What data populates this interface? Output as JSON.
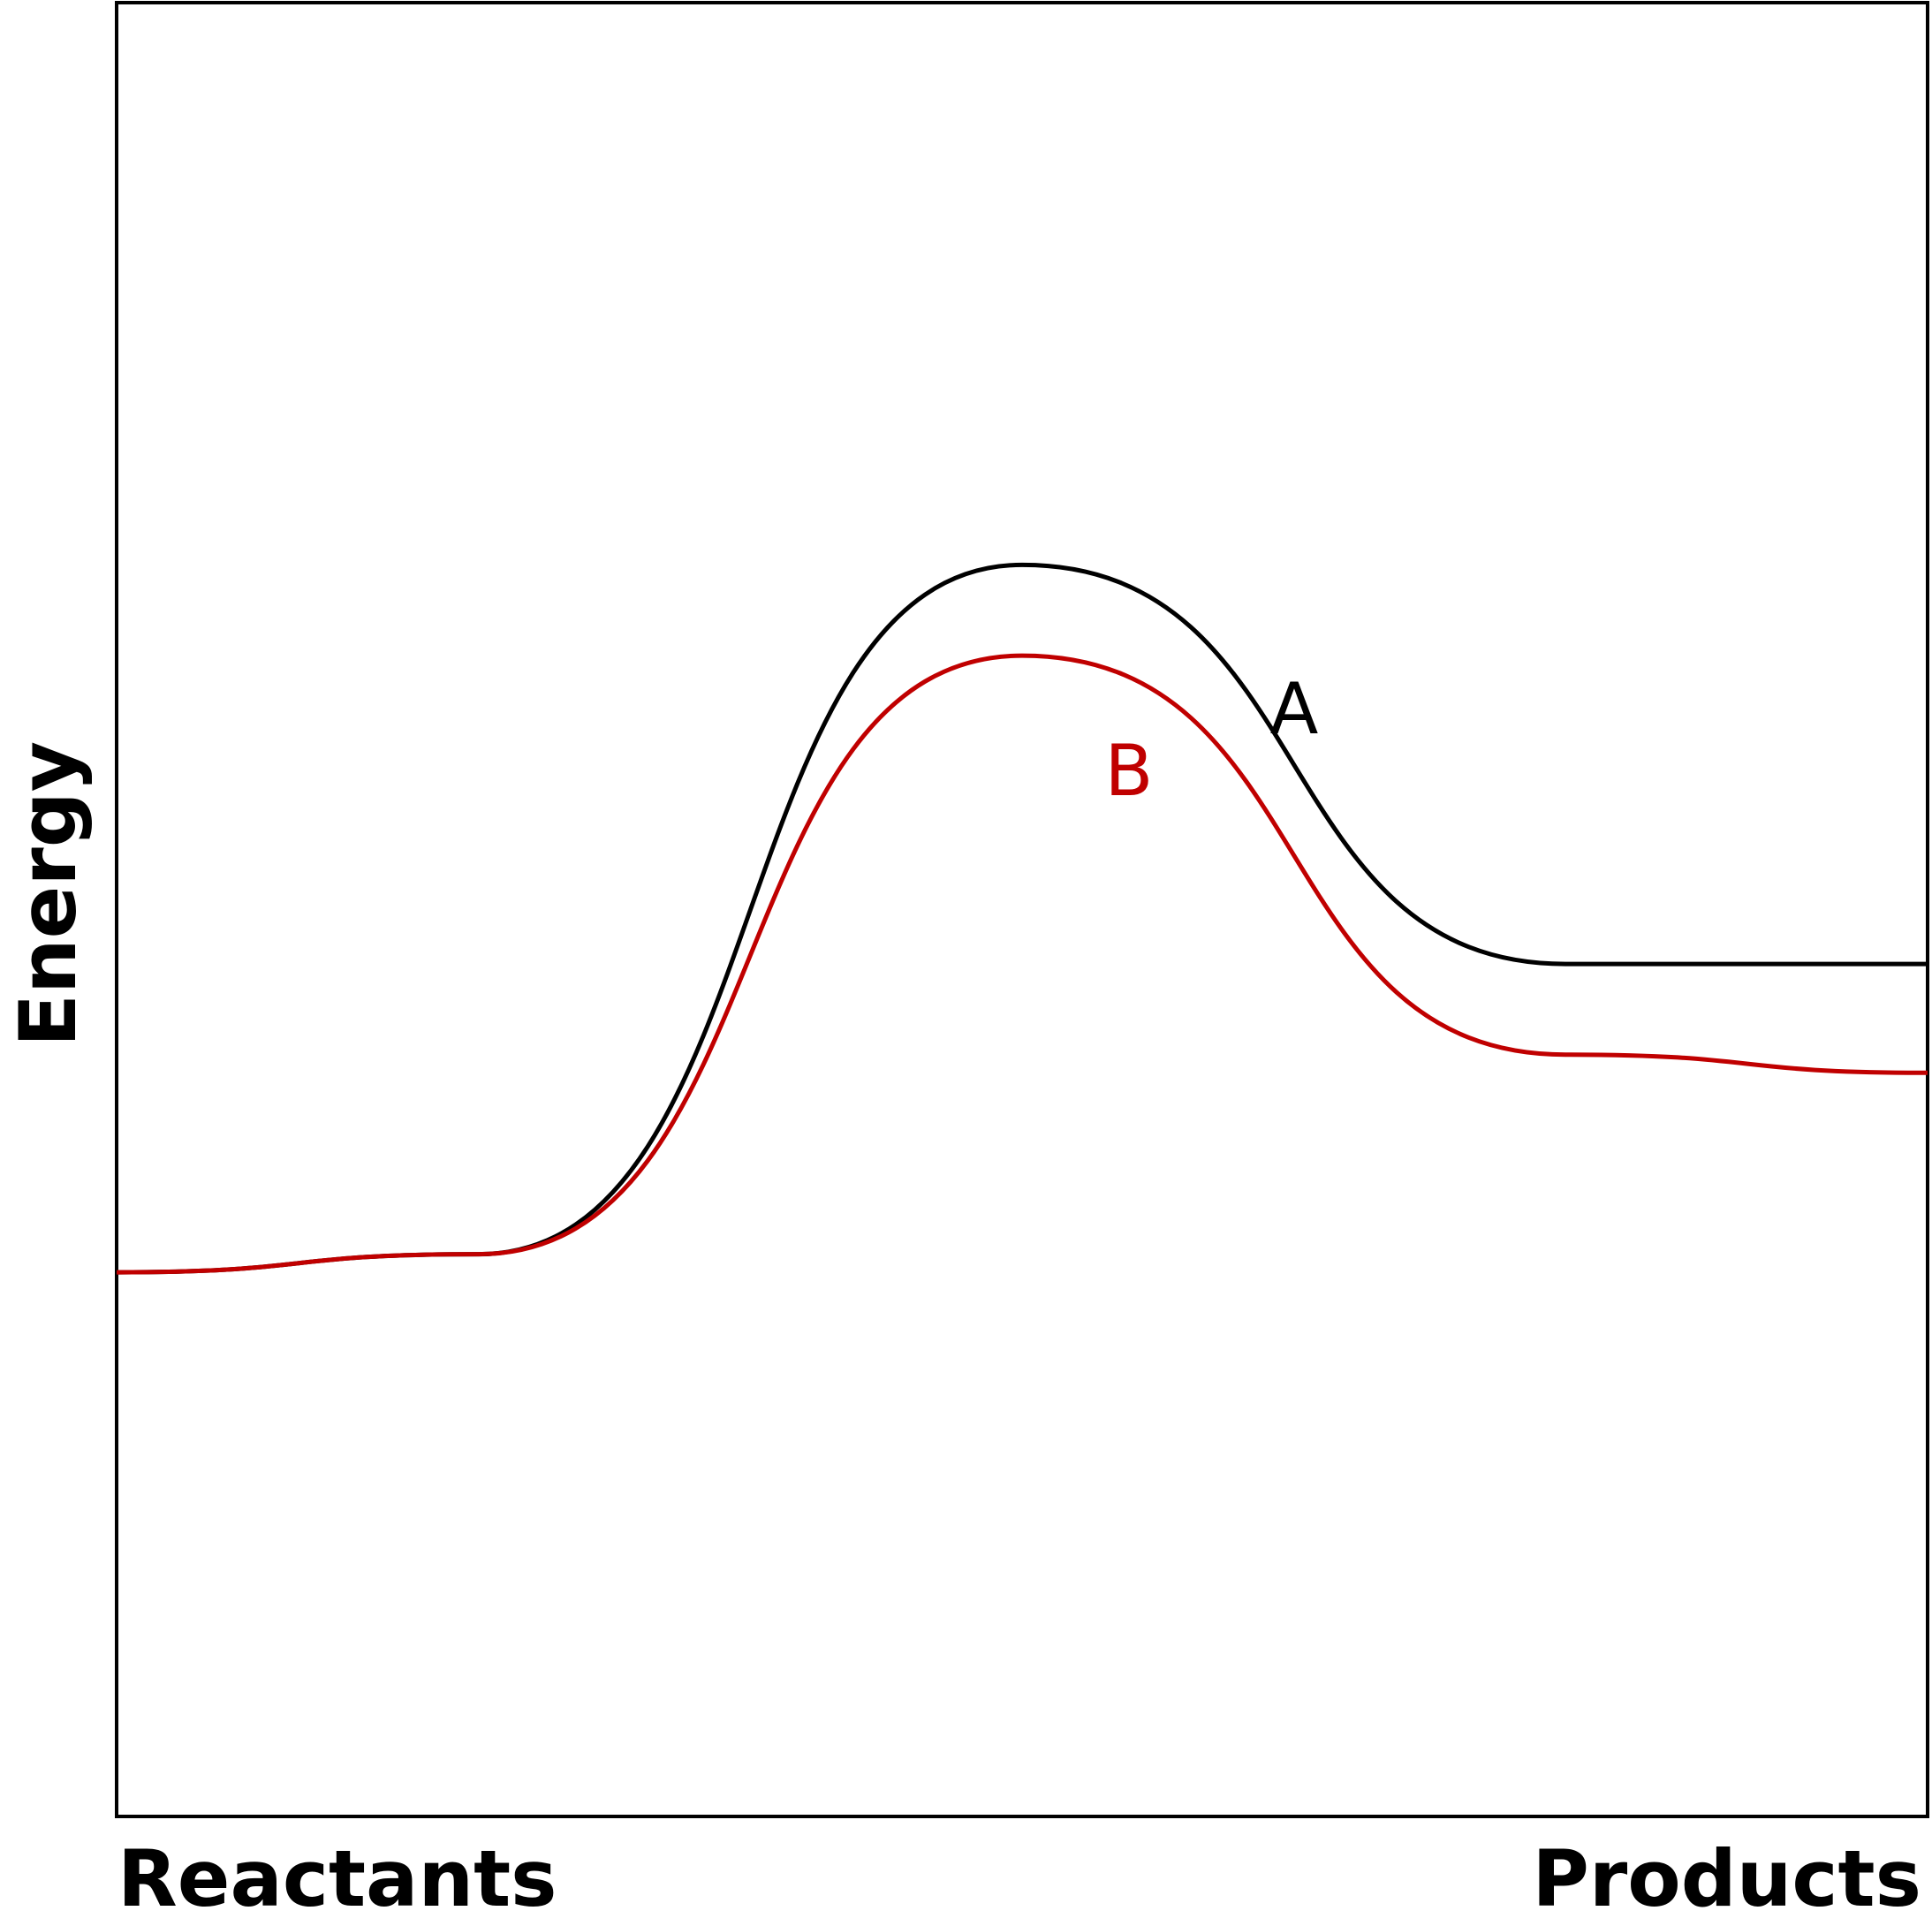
{
  "chart_data": {
    "type": "line",
    "ylabel": "Energy",
    "x_tick_labels": [
      "Reactants",
      "Products"
    ],
    "grid": false,
    "legend": "none",
    "series": [
      {
        "name": "A",
        "color": "#000000",
        "points": [
          [
            0.0,
            0.3
          ],
          [
            0.2,
            0.31
          ],
          [
            0.5,
            0.69
          ],
          [
            0.8,
            0.47
          ],
          [
            1.0,
            0.47
          ]
        ]
      },
      {
        "name": "B",
        "color": "#c00000",
        "points": [
          [
            0.0,
            0.3
          ],
          [
            0.2,
            0.31
          ],
          [
            0.5,
            0.64
          ],
          [
            0.8,
            0.42
          ],
          [
            1.0,
            0.41
          ]
        ]
      }
    ]
  }
}
